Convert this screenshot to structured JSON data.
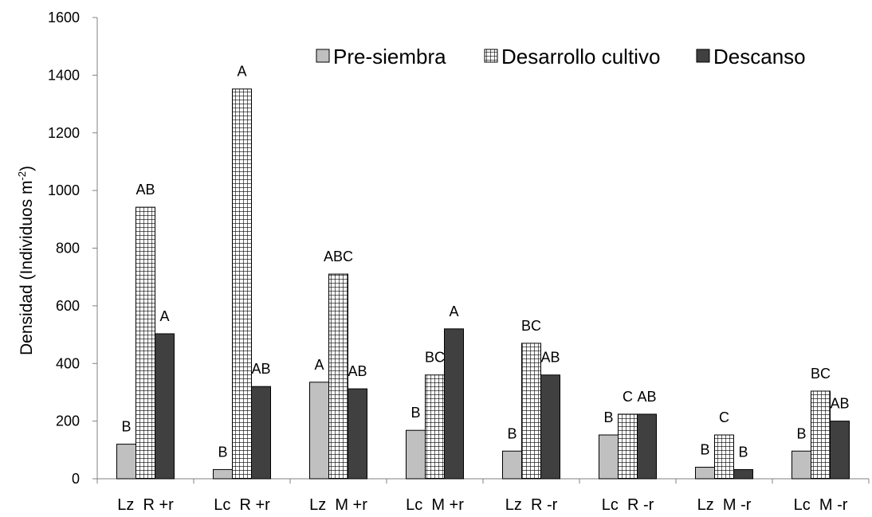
{
  "chart_data": {
    "type": "bar",
    "title": "",
    "xlabel": "",
    "ylabel": "Densidad (Individuos m",
    "ylabel_sup": "-2",
    "ylabel_close": ")",
    "ylim": [
      0,
      1600
    ],
    "yticks": [
      0,
      200,
      400,
      600,
      800,
      1000,
      1200,
      1400,
      1600
    ],
    "grid": false,
    "legend_position": "top-right",
    "categories": [
      "Lz  R +r",
      "Lc  R +r",
      "Lz  M +r",
      "Lc  M +r",
      "Lz  R -r",
      "Lc  R -r",
      "Lz  M -r",
      "Lc  M -r"
    ],
    "series": [
      {
        "name": "Pre-siembra",
        "color": "#c0c0c0",
        "pattern": "solid",
        "values": [
          120,
          32,
          335,
          168,
          96,
          152,
          40,
          96
        ],
        "labels": [
          "B",
          "B",
          "A",
          "B",
          "B",
          "B",
          "B",
          "B"
        ]
      },
      {
        "name": "Desarrollo cultivo",
        "color": "#ffffff",
        "pattern": "grid",
        "values": [
          942,
          1352,
          710,
          360,
          470,
          224,
          152,
          304
        ],
        "labels": [
          "AB",
          "A",
          "ABC",
          "BC",
          "BC",
          "C",
          "C",
          "BC"
        ]
      },
      {
        "name": "Descanso",
        "color": "#404040",
        "pattern": "solid",
        "values": [
          503,
          320,
          312,
          520,
          360,
          224,
          32,
          200
        ],
        "labels": [
          "A",
          "AB",
          "AB",
          "A",
          "AB",
          "AB",
          "B",
          "AB"
        ]
      }
    ]
  }
}
